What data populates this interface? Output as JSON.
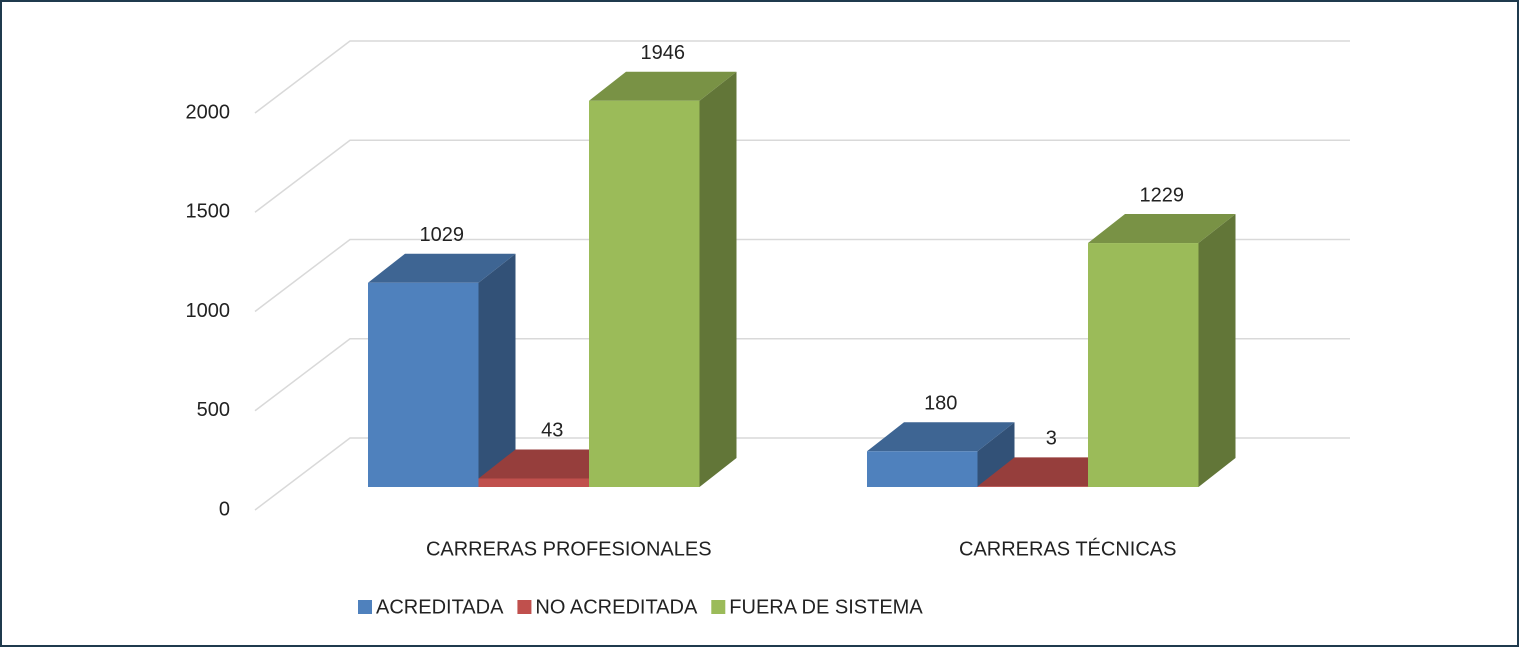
{
  "chart_data": {
    "type": "bar3d",
    "categories": [
      "CARRERAS PROFESIONALES",
      "CARRERAS TÉCNICAS"
    ],
    "series": [
      {
        "name": "ACREDITADA",
        "color": "#4f81bd",
        "values": [
          1029,
          180
        ]
      },
      {
        "name": "NO ACREDITADA",
        "color": "#c0504d",
        "values": [
          43,
          3
        ]
      },
      {
        "name": "FUERA DE SISTEMA",
        "color": "#9bbb59",
        "values": [
          1946,
          1229
        ]
      }
    ],
    "ylim": [
      0,
      2000
    ],
    "yticks": [
      0,
      500,
      1000,
      1500,
      2000
    ],
    "grid": true,
    "legend": "bottom"
  }
}
